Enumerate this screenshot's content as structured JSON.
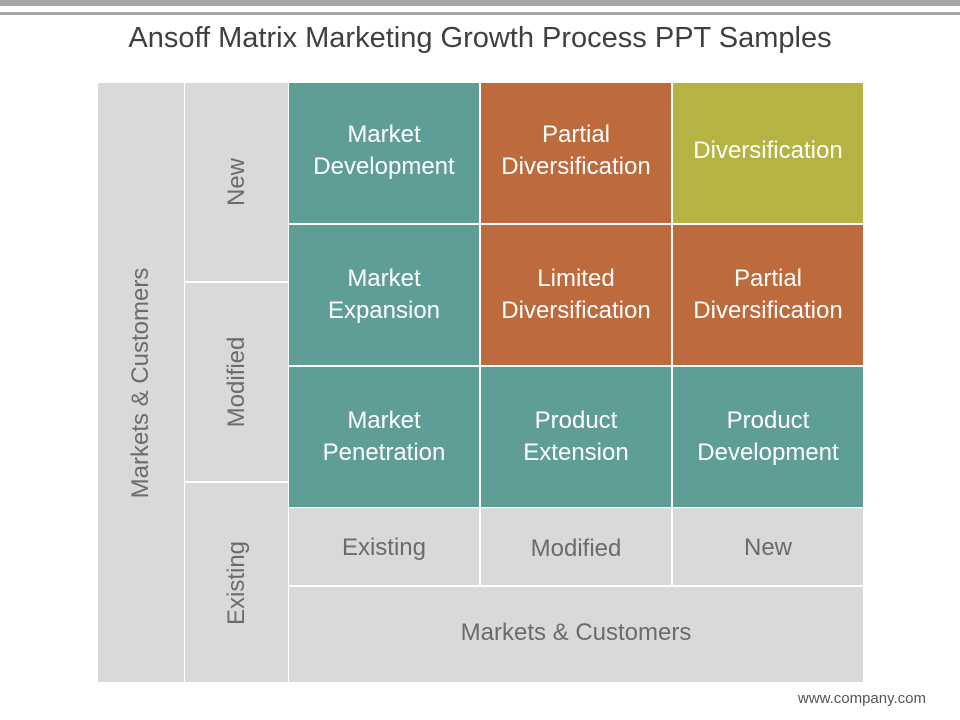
{
  "title": "Ansoff Matrix Marketing Growth Process PPT Samples",
  "left_axis": {
    "outer_label": "Markets & Customers",
    "rows": [
      "New",
      "Modified",
      "Existing"
    ]
  },
  "bottom_axis": {
    "columns": [
      "Existing",
      "Modified",
      "New"
    ],
    "outer_label": "Markets & Customers"
  },
  "matrix": {
    "rows": [
      [
        {
          "line1": "Market",
          "line2": "Development",
          "color": "#5e9e97"
        },
        {
          "line1": "Partial",
          "line2": "Diversification",
          "color": "#bd6a3c"
        },
        {
          "line1": "Diversification",
          "line2": "",
          "color": "#b5b442"
        }
      ],
      [
        {
          "line1": "Market",
          "line2": "Expansion",
          "color": "#5e9e97"
        },
        {
          "line1": "Limited",
          "line2": "Diversification",
          "color": "#bd6a3c"
        },
        {
          "line1": "Partial",
          "line2": "Diversification",
          "color": "#bd6a3c"
        }
      ],
      [
        {
          "line1": "Market",
          "line2": "Penetration",
          "color": "#5e9e97"
        },
        {
          "line1": "Product",
          "line2": "Extension",
          "color": "#5e9e97"
        },
        {
          "line1": "Product",
          "line2": "Development",
          "color": "#5e9e97"
        }
      ]
    ]
  },
  "footer": "www.company.com"
}
